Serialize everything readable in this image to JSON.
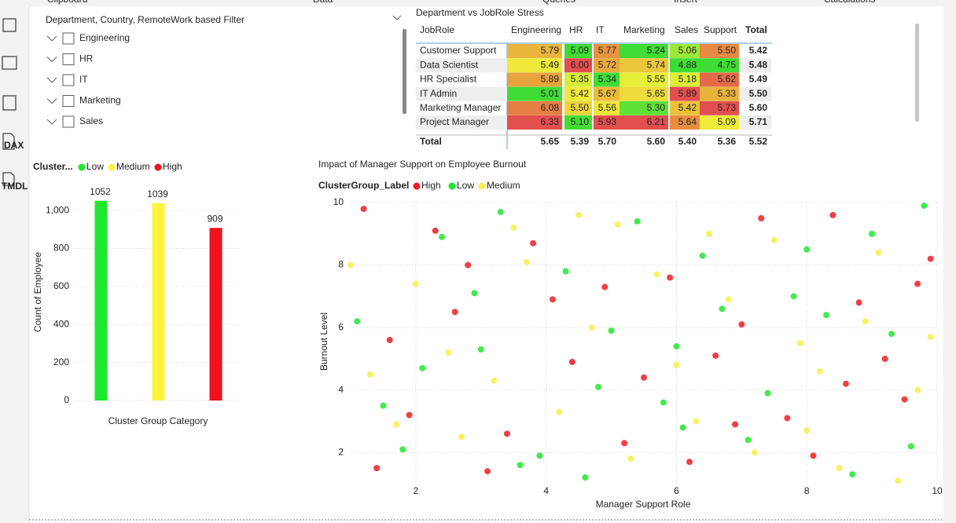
{
  "ribbon": [
    "Clipboard",
    "Data",
    "Queries",
    "Insert",
    "Calculations"
  ],
  "sidebar_labels": [
    "DAX",
    "TMDL"
  ],
  "slicer": {
    "title": "Department, Country, RemoteWork based Filter",
    "items": [
      "Engineering",
      "HR",
      "IT",
      "Marketing",
      "Sales"
    ]
  },
  "matrix": {
    "title": "Department vs JobRole Stress",
    "columns": [
      "JobRole",
      "Engineering",
      "HR",
      "IT",
      "Marketing",
      "Sales",
      "Support",
      "Total"
    ],
    "color_scale": [
      "#3fdc35",
      "#eef03a",
      "#e9a33c",
      "#e24f4f"
    ],
    "rows": [
      {
        "label": "Customer Support",
        "values": [
          "5.79",
          "5.09",
          "5.77",
          "5.24",
          "5.06",
          "5.50",
          "5.42"
        ]
      },
      {
        "label": "Data Scientist",
        "values": [
          "5.49",
          "6.00",
          "5.72",
          "5.74",
          "4.88",
          "4.75",
          "5.48"
        ]
      },
      {
        "label": "HR Specialist",
        "values": [
          "5.89",
          "5.35",
          "5.34",
          "5.55",
          "5.18",
          "5.62",
          "5.49"
        ]
      },
      {
        "label": "IT Admin",
        "values": [
          "5.01",
          "5.42",
          "5.67",
          "5.65",
          "5.89",
          "5.33",
          "5.50"
        ]
      },
      {
        "label": "Marketing Manager",
        "values": [
          "6.08",
          "5.50",
          "5.56",
          "5.30",
          "5.42",
          "5.73",
          "5.60"
        ]
      },
      {
        "label": "Project Manager",
        "values": [
          "6.33",
          "5.10",
          "5.93",
          "6.21",
          "5.64",
          "5.09",
          "5.71"
        ]
      }
    ],
    "total": {
      "label": "Total",
      "values": [
        "5.65",
        "5.39",
        "5.70",
        "5.60",
        "5.40",
        "5.36",
        "5.52"
      ]
    }
  },
  "chart_data": [
    {
      "type": "bar",
      "legend": {
        "title": "Cluster...",
        "names": [
          "Low",
          "Medium",
          "High"
        ]
      },
      "categories": [
        null,
        null,
        null
      ],
      "values": [
        1052,
        1039,
        909
      ],
      "colors": [
        "#1ee82b",
        "#fdf23c",
        "#f0101e"
      ],
      "x_label": "Cluster Group Category",
      "y_label": "Count of Employee",
      "ylim": [
        0,
        1100
      ],
      "yticks": [
        0,
        200,
        400,
        600,
        800,
        {
          "value": 1000,
          "label": "1,000"
        }
      ],
      "grid": true
    },
    {
      "type": "scatter",
      "title": "Impact of Manager Support on Employee Burnout",
      "legend_title": "ClusterGroup_Label",
      "x_label": "Manager Support Role",
      "y_label": "Burnout Level",
      "xlim": [
        1,
        10
      ],
      "xticks": [
        2,
        4,
        6,
        8,
        10
      ],
      "ylim": [
        1,
        10
      ],
      "yticks": [
        2,
        4,
        6,
        8,
        10
      ],
      "grid": true,
      "series": [
        {
          "name": "High",
          "color": "#ee1c25",
          "x": [
            1.2,
            1.9,
            2.6,
            3.1,
            3.8,
            4.4,
            5.2,
            5.9,
            6.6,
            7.3,
            8.1,
            8.8,
            9.5,
            9.9,
            1.6,
            2.3,
            3.4,
            4.9,
            5.5,
            6.2,
            7.0,
            7.7,
            8.4,
            9.2,
            1.4,
            2.8,
            4.1,
            6.9,
            8.6,
            9.7
          ],
          "values": [
            9.8,
            3.2,
            6.5,
            1.4,
            8.7,
            4.9,
            2.3,
            7.6,
            5.1,
            9.5,
            1.9,
            6.8,
            3.7,
            8.2,
            5.6,
            9.1,
            2.6,
            7.3,
            4.4,
            1.7,
            6.1,
            3.1,
            9.6,
            5.0,
            1.5,
            8.0,
            6.9,
            2.9,
            4.2,
            7.4
          ]
        },
        {
          "name": "Low",
          "color": "#1ee82b",
          "x": [
            1.1,
            1.8,
            2.4,
            3.0,
            3.6,
            4.3,
            4.8,
            5.4,
            6.1,
            6.7,
            7.4,
            8.0,
            8.7,
            9.3,
            9.8,
            1.5,
            2.9,
            3.9,
            5.0,
            6.4,
            7.1,
            8.3,
            9.0,
            2.1,
            4.6,
            5.8,
            7.8,
            9.6,
            3.3,
            6.0
          ],
          "values": [
            6.2,
            2.1,
            8.9,
            5.3,
            1.6,
            7.8,
            4.1,
            9.4,
            2.8,
            6.6,
            3.9,
            8.5,
            1.3,
            5.8,
            9.9,
            3.5,
            7.1,
            1.9,
            5.9,
            8.3,
            2.4,
            6.4,
            9.0,
            4.7,
            1.2,
            3.6,
            7.0,
            2.2,
            9.7,
            5.4
          ]
        },
        {
          "name": "Medium",
          "color": "#f4f048",
          "x": [
            1.3,
            2.0,
            2.7,
            3.5,
            4.2,
            4.7,
            5.3,
            6.0,
            6.5,
            7.2,
            7.9,
            8.5,
            9.1,
            9.7,
            1.7,
            2.5,
            3.7,
            4.5,
            5.7,
            6.3,
            7.5,
            8.2,
            8.9,
            9.4,
            1.0,
            3.2,
            5.1,
            6.8,
            8.0,
            9.9
          ],
          "values": [
            4.5,
            7.4,
            2.5,
            9.2,
            3.3,
            6.0,
            1.8,
            4.8,
            9.0,
            2.0,
            5.5,
            1.5,
            8.4,
            4.0,
            2.9,
            5.2,
            8.1,
            9.6,
            7.7,
            3.0,
            8.8,
            4.6,
            6.2,
            1.1,
            8.0,
            4.3,
            9.3,
            6.9,
            2.7,
            5.7
          ]
        }
      ]
    }
  ]
}
